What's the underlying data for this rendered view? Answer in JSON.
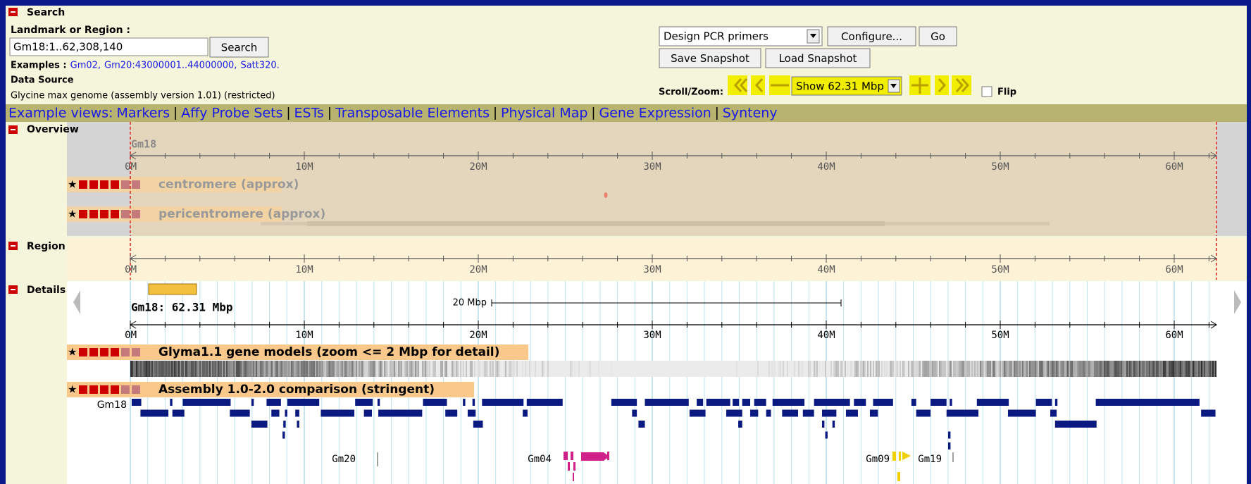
{
  "search": {
    "title": "Search",
    "landmark_label": "Landmark or Region :",
    "landmark_value": "Gm18:1..62,308,140",
    "search_button": "Search",
    "examples_label": "Examples :",
    "examples": [
      "Gm02,",
      "Gm20:43000001..44000000,",
      "Satt320."
    ],
    "data_source_label": "Data Source",
    "data_source": "Glycine max genome (assembly version 1.01) (restricted)"
  },
  "tools": {
    "plugin": "Design PCR primers",
    "configure": "Configure...",
    "go": "Go",
    "save": "Save Snapshot",
    "load": "Load Snapshot",
    "scroll_zoom": "Scroll/Zoom:",
    "zoom_select": "Show 62.31 Mbp",
    "flip": "Flip"
  },
  "example_views": {
    "label": "Example views:",
    "links": [
      "Markers",
      "Affy Probe Sets",
      "ESTs",
      "Transposable Elements",
      "Physical Map",
      "Gene Expression",
      "Synteny"
    ]
  },
  "overview": {
    "title": "Overview",
    "chrom": "Gm18",
    "ruler": [
      "0M",
      "10M",
      "20M",
      "30M",
      "40M",
      "50M",
      "60M"
    ],
    "tracks": [
      "centromere (approx)",
      "pericentromere (approx)"
    ]
  },
  "region": {
    "title": "Region"
  },
  "details": {
    "title": "Details",
    "label": "Gm18: 62.31 Mbp",
    "scale": "20 Mbp",
    "tracks": [
      "Glyma1.1 gene models (zoom <= 2 Mbp for detail)",
      "Assembly 1.0-2.0 comparison (stringent)"
    ],
    "row_label": "Gm18",
    "matches": [
      "Gm20",
      "Gm04",
      "Gm09",
      "Gm19"
    ]
  }
}
